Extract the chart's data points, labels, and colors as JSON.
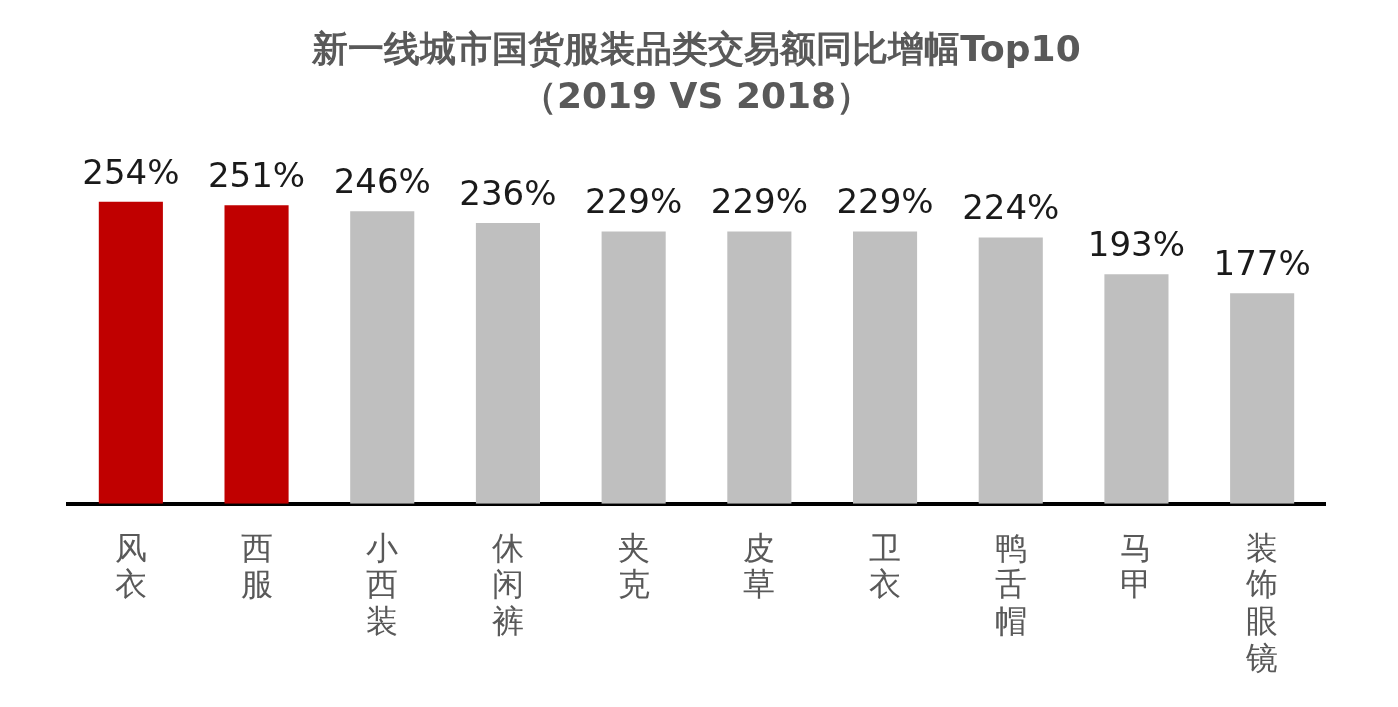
{
  "chart_data": {
    "type": "bar",
    "title": "新一线城市国货服装品类交易额同比增幅Top10",
    "subtitle": "（2019 VS 2018）",
    "categories": [
      "风衣",
      "西服",
      "小西装",
      "休闲裤",
      "夹克",
      "皮草",
      "卫衣",
      "鸭舌帽",
      "马甲",
      "装饰眼镜"
    ],
    "values": [
      254,
      251,
      246,
      236,
      229,
      229,
      229,
      224,
      193,
      177
    ],
    "colors": [
      "#c00000",
      "#c00000",
      "#bfbfbf",
      "#bfbfbf",
      "#bfbfbf",
      "#bfbfbf",
      "#bfbfbf",
      "#bfbfbf",
      "#bfbfbf",
      "#bfbfbf"
    ],
    "value_labels": [
      "254%",
      "251%",
      "246%",
      "236%",
      "229%",
      "229%",
      "229%",
      "224%",
      "193%",
      "177%"
    ]
  }
}
